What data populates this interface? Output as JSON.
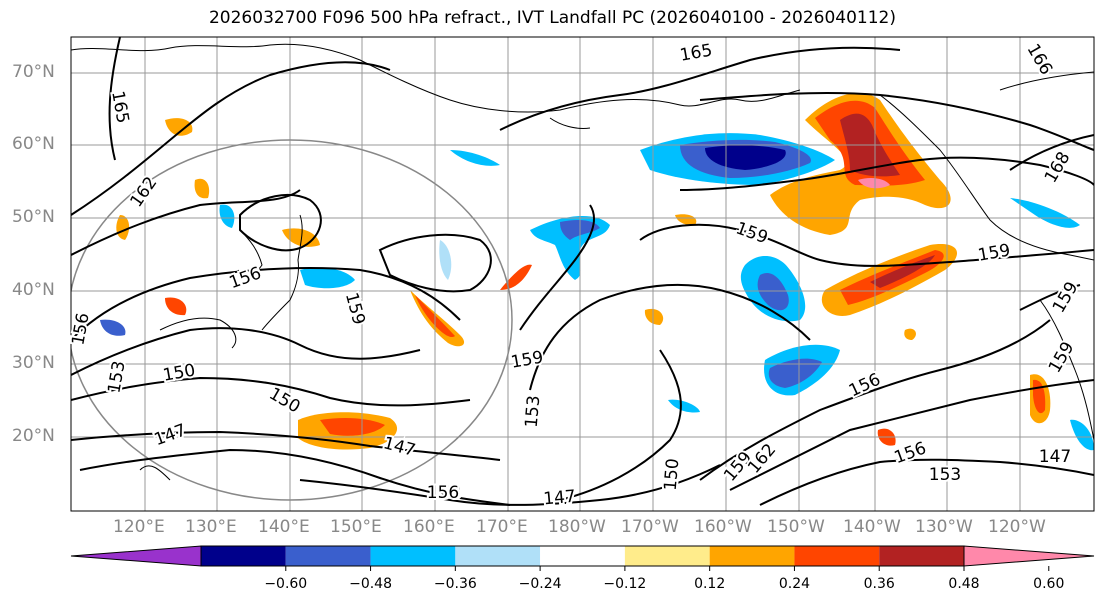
{
  "title": "2026032700 F096 500 hPa refract., IVT Landfall PC (2026040100 - 2026040112)",
  "lat_labels": [
    "70°N",
    "60°N",
    "50°N",
    "40°N",
    "30°N",
    "20°N"
  ],
  "lon_labels": [
    "120°E",
    "130°E",
    "140°E",
    "150°E",
    "160°E",
    "170°E",
    "180°W",
    "170°W",
    "160°W",
    "150°W",
    "140°W",
    "130°W",
    "120°W"
  ],
  "contour_labels": [
    "165",
    "165",
    "162",
    "156",
    "159",
    "156",
    "153",
    "150",
    "150",
    "147",
    "147",
    "153",
    "156",
    "147",
    "159",
    "159",
    "153",
    "150",
    "159",
    "162",
    "156",
    "156",
    "153",
    "159",
    "168",
    "159",
    "159",
    "147",
    "166"
  ],
  "colorbar": {
    "ticks": [
      "−0.60",
      "−0.48",
      "−0.36",
      "−0.24",
      "−0.12",
      "0.12",
      "0.24",
      "0.36",
      "0.48",
      "0.60"
    ],
    "colors": [
      "#9932cc",
      "#00008b",
      "#3a5fcd",
      "#00bfff",
      "#b0e0f8",
      "#ffffff",
      "#ffec8b",
      "#ffa500",
      "#ff4500",
      "#b22222",
      "#ff88aa"
    ]
  }
}
